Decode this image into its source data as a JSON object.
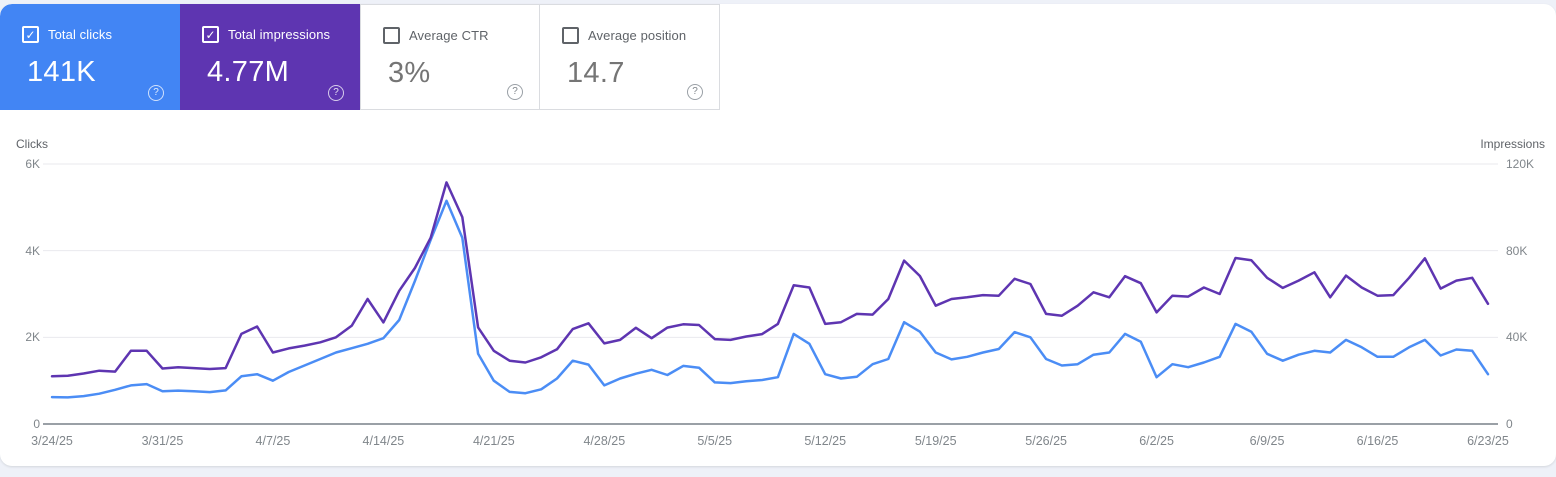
{
  "icons": {
    "check": "✓",
    "help": "?"
  },
  "cards": [
    {
      "label": "Total clicks",
      "value": "141K",
      "checked": true,
      "bg": "#4285f4"
    },
    {
      "label": "Total impressions",
      "value": "4.77M",
      "checked": true,
      "bg": "#5e35b1"
    },
    {
      "label": "Average CTR",
      "value": "3%",
      "checked": false,
      "bg": "#ffffff"
    },
    {
      "label": "Average position",
      "value": "14.7",
      "checked": false,
      "bg": "#ffffff"
    }
  ],
  "chart_data": {
    "type": "line",
    "grid": true,
    "left_axis": {
      "title": "Clicks",
      "ticks": [
        "0",
        "2K",
        "4K",
        "6K"
      ],
      "max": 6000
    },
    "right_axis": {
      "title": "Impressions",
      "ticks": [
        "0",
        "40K",
        "80K",
        "120K"
      ],
      "max": 120000
    },
    "x_tick_labels": [
      "3/24/25",
      "3/31/25",
      "4/7/25",
      "4/14/25",
      "4/21/25",
      "4/28/25",
      "5/5/25",
      "5/12/25",
      "5/19/25",
      "5/26/25",
      "6/2/25",
      "6/9/25",
      "6/16/25",
      "6/23/25"
    ],
    "x_tick_day_indices": [
      0,
      7,
      14,
      21,
      28,
      35,
      42,
      49,
      56,
      63,
      70,
      77,
      84,
      91
    ],
    "dates": [
      "3/24/25",
      "3/25/25",
      "3/26/25",
      "3/27/25",
      "3/28/25",
      "3/29/25",
      "3/30/25",
      "3/31/25",
      "4/1/25",
      "4/2/25",
      "4/3/25",
      "4/4/25",
      "4/5/25",
      "4/6/25",
      "4/7/25",
      "4/8/25",
      "4/9/25",
      "4/10/25",
      "4/11/25",
      "4/12/25",
      "4/13/25",
      "4/14/25",
      "4/15/25",
      "4/16/25",
      "4/17/25",
      "4/18/25",
      "4/19/25",
      "4/20/25",
      "4/21/25",
      "4/22/25",
      "4/23/25",
      "4/24/25",
      "4/25/25",
      "4/26/25",
      "4/27/25",
      "4/28/25",
      "4/29/25",
      "4/30/25",
      "5/1/25",
      "5/2/25",
      "5/3/25",
      "5/4/25",
      "5/5/25",
      "5/6/25",
      "5/7/25",
      "5/8/25",
      "5/9/25",
      "5/10/25",
      "5/11/25",
      "5/12/25",
      "5/13/25",
      "5/14/25",
      "5/15/25",
      "5/16/25",
      "5/17/25",
      "5/18/25",
      "5/19/25",
      "5/20/25",
      "5/21/25",
      "5/22/25",
      "5/23/25",
      "5/24/25",
      "5/25/25",
      "5/26/25",
      "5/27/25",
      "5/28/25",
      "5/29/25",
      "5/30/25",
      "5/31/25",
      "6/1/25",
      "6/2/25",
      "6/3/25",
      "6/4/25",
      "6/5/25",
      "6/6/25",
      "6/7/25",
      "6/8/25",
      "6/9/25",
      "6/10/25",
      "6/11/25",
      "6/12/25",
      "6/13/25",
      "6/14/25",
      "6/15/25",
      "6/16/25",
      "6/17/25",
      "6/18/25",
      "6/19/25",
      "6/20/25",
      "6/21/25",
      "6/22/25",
      "6/23/25"
    ],
    "series": [
      {
        "name": "Clicks",
        "axis": "left",
        "color": "#4b8df5",
        "values": [
          620,
          615,
          645,
          700,
          790,
          890,
          920,
          755,
          770,
          755,
          735,
          775,
          1100,
          1150,
          1000,
          1200,
          1350,
          1500,
          1650,
          1750,
          1850,
          1980,
          2400,
          3300,
          4250,
          5150,
          4300,
          1620,
          1000,
          740,
          710,
          800,
          1050,
          1460,
          1370,
          890,
          1050,
          1160,
          1250,
          1130,
          1340,
          1300,
          960,
          945,
          985,
          1015,
          1080,
          2080,
          1850,
          1150,
          1050,
          1090,
          1380,
          1500,
          2350,
          2130,
          1650,
          1490,
          1550,
          1650,
          1730,
          2120,
          2000,
          1500,
          1350,
          1380,
          1600,
          1650,
          2080,
          1900,
          1080,
          1380,
          1310,
          1420,
          1550,
          2310,
          2130,
          1620,
          1460,
          1600,
          1690,
          1650,
          1940,
          1770,
          1550,
          1550,
          1770,
          1940,
          1580,
          1720,
          1690,
          1150
        ]
      },
      {
        "name": "Impressions",
        "axis": "right",
        "color": "#5e35b1",
        "values": [
          22000,
          22300,
          23300,
          24600,
          24200,
          33800,
          33800,
          25600,
          26200,
          25800,
          25400,
          25800,
          41600,
          45000,
          33000,
          34900,
          36200,
          37700,
          40000,
          45400,
          57700,
          46900,
          61500,
          72000,
          86000,
          111500,
          95500,
          44600,
          33800,
          29200,
          28400,
          30800,
          34500,
          43800,
          46500,
          37200,
          38800,
          44400,
          39600,
          44500,
          46000,
          45700,
          39200,
          38800,
          40400,
          41500,
          46200,
          64000,
          63000,
          46200,
          47000,
          50800,
          50500,
          57700,
          75400,
          68300,
          54600,
          57700,
          58500,
          59500,
          59200,
          67000,
          64600,
          50800,
          50000,
          54600,
          60800,
          58500,
          68200,
          65000,
          51500,
          59200,
          58800,
          63000,
          60000,
          76600,
          75600,
          67500,
          62800,
          66200,
          70000,
          58500,
          68500,
          63000,
          59200,
          59500,
          67500,
          76500,
          62500,
          66200,
          67500,
          55500
        ]
      }
    ]
  }
}
